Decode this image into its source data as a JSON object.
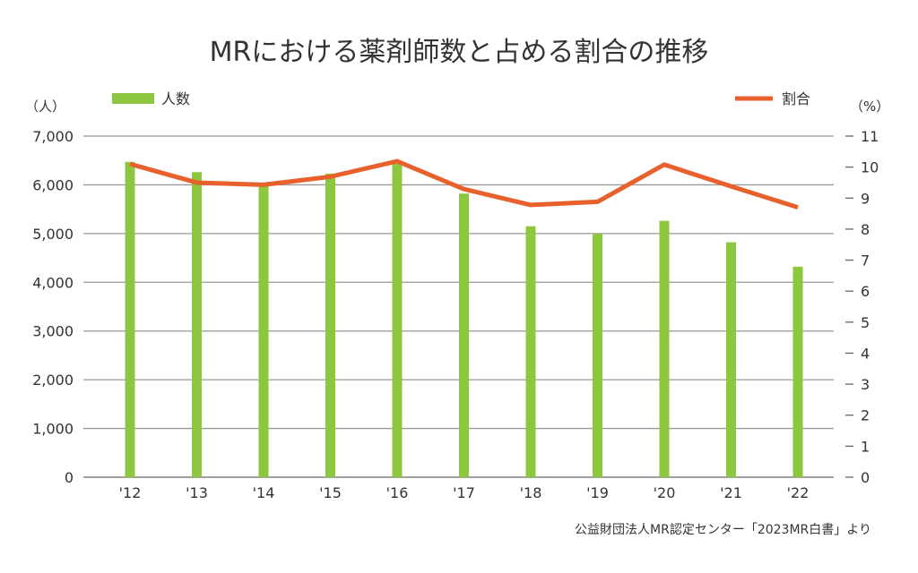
{
  "chart_data": {
    "type": "bar+line",
    "title": "MRにおける薬剤師数と占める割合の推移",
    "categories": [
      "'12",
      "'13",
      "'14",
      "'15",
      "'16",
      "'17",
      "'18",
      "'19",
      "'20",
      "'21",
      "'22"
    ],
    "series": [
      {
        "name": "人数",
        "type": "bar",
        "axis": "left",
        "color": "#8dc63f",
        "values": [
          6470,
          6260,
          6000,
          6230,
          6480,
          5820,
          5150,
          5000,
          5260,
          4820,
          4320
        ]
      },
      {
        "name": "割合",
        "type": "line",
        "axis": "right",
        "color": "#e8602c",
        "values": [
          10.1,
          9.5,
          9.43,
          9.69,
          10.19,
          9.29,
          8.78,
          8.88,
          10.08,
          9.38,
          8.7
        ]
      }
    ],
    "y_left": {
      "unit": "（人）",
      "range": [
        0,
        7000
      ],
      "ticks": [
        "0",
        "1,000",
        "2,000",
        "3,000",
        "4,000",
        "5,000",
        "6,000",
        "7,000"
      ]
    },
    "y_right": {
      "unit": "（%）",
      "range": [
        0,
        11
      ],
      "ticks": [
        "0",
        "1",
        "2",
        "3",
        "4",
        "5",
        "6",
        "7",
        "8",
        "9",
        "10",
        "11"
      ]
    },
    "grid": true,
    "legend": "top",
    "source": "公益財団法人MR認定センター「2023MR白書」より"
  }
}
